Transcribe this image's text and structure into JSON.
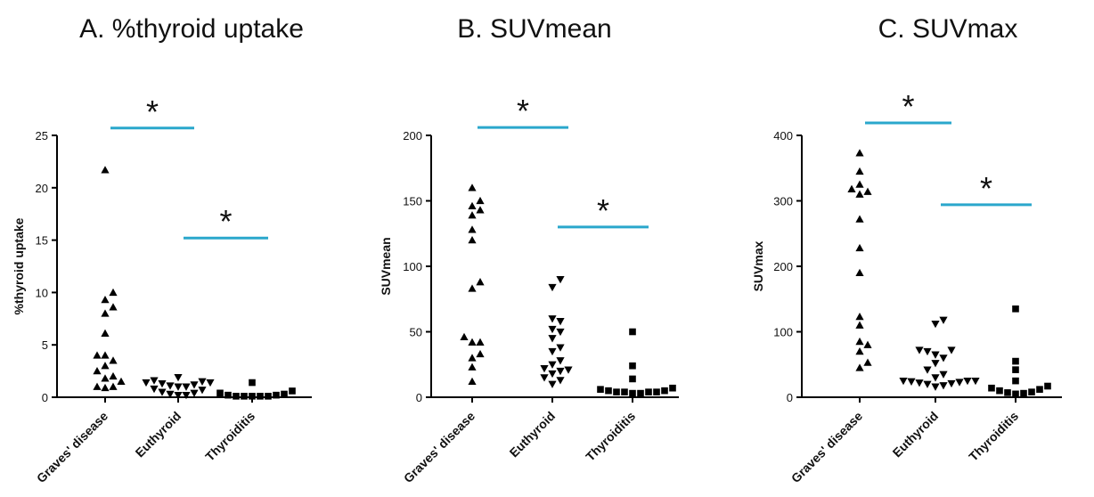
{
  "chart_data": [
    {
      "type": "scatter",
      "title": "A. %thyroid uptake",
      "ylabel": "%thyroid uptake",
      "xlabel": "",
      "categories": [
        "Graves' disease",
        "Euthyroid",
        "Thyroiditis"
      ],
      "ylim": [
        0,
        25
      ],
      "yticks": [
        0,
        5,
        10,
        15,
        20,
        25
      ],
      "markers": [
        "triangle-up",
        "triangle-down",
        "square"
      ],
      "groups": [
        [
          21.7,
          10.0,
          9.3,
          8.6,
          8.0,
          6.1,
          4.0,
          4.0,
          3.5,
          3.0,
          2.5,
          2.0,
          1.8,
          1.5,
          1.0,
          1.0,
          0.9
        ],
        [
          1.9,
          1.6,
          1.5,
          1.4,
          1.4,
          1.3,
          1.2,
          1.1,
          1.0,
          1.0,
          0.8,
          0.7,
          0.5,
          0.4,
          0.3,
          0.2,
          0.2
        ],
        [
          1.4,
          0.6,
          0.4,
          0.3,
          0.2,
          0.2,
          0.1,
          0.1,
          0.1,
          0.1,
          0.1
        ]
      ],
      "significance": [
        {
          "from": 0,
          "to": 1,
          "label": "*",
          "y": 25.7
        },
        {
          "from": 1,
          "to": 2,
          "label": "*",
          "y": 15.2
        }
      ]
    },
    {
      "type": "scatter",
      "title": "B. SUVmean",
      "ylabel": "SUVmean",
      "xlabel": "",
      "categories": [
        "Graves' disease",
        "Euthyroid",
        "Thyroiditis"
      ],
      "ylim": [
        0,
        200
      ],
      "yticks": [
        0,
        50,
        100,
        150,
        200
      ],
      "markers": [
        "triangle-up",
        "triangle-down",
        "square"
      ],
      "groups": [
        [
          160,
          150,
          146,
          143,
          139,
          128,
          120,
          88,
          83,
          46,
          42,
          42,
          33,
          30,
          23,
          12
        ],
        [
          90,
          84,
          60,
          58,
          52,
          50,
          45,
          38,
          35,
          28,
          25,
          22,
          21,
          20,
          18,
          15,
          13,
          10
        ],
        [
          50,
          24,
          14,
          7,
          6,
          5,
          5,
          4,
          4,
          4,
          4,
          3,
          3
        ]
      ],
      "significance": [
        {
          "from": 0,
          "to": 1,
          "label": "*",
          "y": 206
        },
        {
          "from": 1,
          "to": 2,
          "label": "*",
          "y": 130
        }
      ]
    },
    {
      "type": "scatter",
      "title": "C. SUVmax",
      "ylabel": "SUVmax",
      "xlabel": "",
      "categories": [
        "Graves' disease",
        "Euthyroid",
        "Thyroiditis"
      ],
      "ylim": [
        0,
        400
      ],
      "yticks": [
        0,
        100,
        200,
        300,
        400
      ],
      "markers": [
        "triangle-up",
        "triangle-down",
        "square"
      ],
      "groups": [
        [
          373,
          345,
          325,
          318,
          314,
          310,
          272,
          228,
          190,
          123,
          110,
          85,
          80,
          70,
          53,
          45
        ],
        [
          118,
          112,
          72,
          72,
          70,
          65,
          60,
          52,
          42,
          35,
          30,
          25,
          25,
          25,
          24,
          23,
          22,
          21,
          20,
          18,
          16
        ],
        [
          135,
          55,
          42,
          25,
          17,
          14,
          12,
          10,
          8,
          7,
          6,
          5
        ]
      ],
      "significance": [
        {
          "from": 0,
          "to": 1,
          "label": "*",
          "y": 419
        },
        {
          "from": 1,
          "to": 2,
          "label": "*",
          "y": 294
        }
      ]
    }
  ],
  "colors": {
    "marker": "#000000",
    "axis": "#000000",
    "significance_bar": "#2aa7cc"
  }
}
